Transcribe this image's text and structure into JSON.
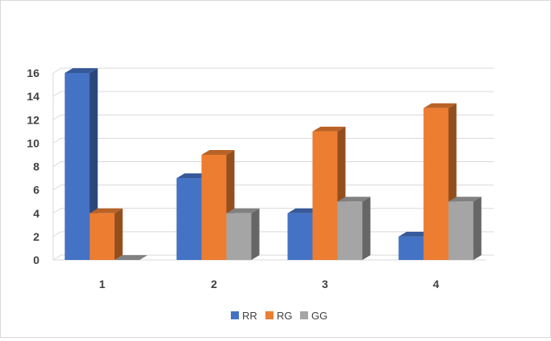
{
  "chart_data": {
    "type": "bar",
    "categories": [
      "1",
      "2",
      "3",
      "4"
    ],
    "series": [
      {
        "name": "RR",
        "values": [
          16,
          7,
          4,
          2
        ],
        "color": "#4472C4"
      },
      {
        "name": "RG",
        "values": [
          4,
          9,
          11,
          13
        ],
        "color": "#ED7D31"
      },
      {
        "name": "GG",
        "values": [
          0,
          4,
          5,
          5
        ],
        "color": "#A5A5A5"
      }
    ],
    "ylim": [
      0,
      16
    ],
    "yticks": [
      "0",
      "2",
      "4",
      "6",
      "8",
      "10",
      "12",
      "14",
      "16"
    ],
    "grid": true,
    "legend": "bottom",
    "style": "3d-clustered-column"
  }
}
